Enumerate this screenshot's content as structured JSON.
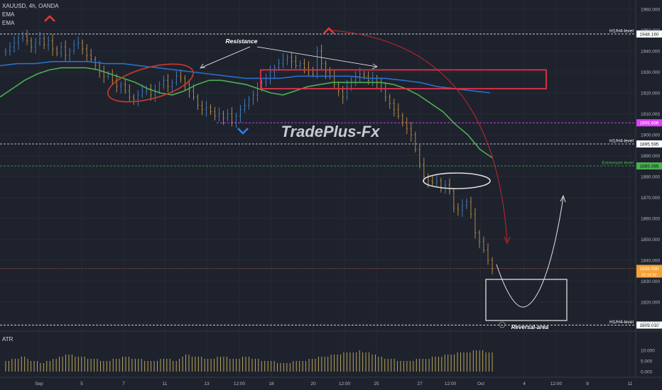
{
  "header": {
    "symbol_line": "XAUUSD, 4h, OANDA",
    "indicator_1": "EMA",
    "indicator_2": "EMA",
    "atr_label": "ATR"
  },
  "watermark": "TradePlus-Fx",
  "colors": {
    "background": "#1e222d",
    "up_candle": "#4a90d9",
    "down_candle": "#d9a24a",
    "ema_fast": "#4caf50",
    "ema_slow": "#2a6fc9",
    "resistance_box": "#e0324a",
    "price_label_bg": "#f7a234",
    "magenta_level": "#e040fb",
    "green_level": "#4caf50",
    "atr_bars": "#c9b25a"
  },
  "chart_data": [
    {
      "type": "candlestick",
      "title": "XAUUSD, 4h, OANDA",
      "ylim": [
        1800,
        1960
      ],
      "y_ticks": [
        1810,
        1820,
        1830,
        1840,
        1850,
        1860,
        1870,
        1880,
        1890,
        1900,
        1910,
        1920,
        1930,
        1940,
        1950,
        1960
      ],
      "y_tick_labels": [
        "1810.000",
        "1820.000",
        "1830.000",
        "1840.000",
        "1850.000",
        "1860.000",
        "1870.000",
        "1880.000",
        "1890.000",
        "1900.000",
        "1910.000",
        "1920.000",
        "1930.000",
        "1940.000",
        "1950.000",
        "1960.000"
      ],
      "x_tick_labels": [
        "Sep",
        "5",
        "7",
        "11",
        "13",
        "12:00",
        "18",
        "20",
        "12:00",
        "25",
        "27",
        "12:00",
        "Oct",
        "4",
        "12:00",
        "9",
        "11"
      ],
      "price_levels": [
        {
          "label": "H1/H4-level",
          "value": 1948.16,
          "tag": "1948.160",
          "style": "dashed-white"
        },
        {
          "label": "",
          "value": 1905.696,
          "tag": "1905.696",
          "style": "dashed-magenta"
        },
        {
          "label": "H1/H4-level",
          "value": 1895.595,
          "tag": "1895.595",
          "style": "dashed-white"
        },
        {
          "label": "Extremum  level",
          "value": 1885.085,
          "tag": "1885.085",
          "style": "dashed-green"
        },
        {
          "label": "H1/H4-level",
          "value": 1809.01,
          "tag": "1809.010",
          "style": "dashed-white"
        }
      ],
      "last_price": {
        "value": 1836.09,
        "tag": "1836.090",
        "countdown": "02:19:32"
      },
      "close_series": [
        1940,
        1942,
        1944,
        1946,
        1947,
        1945,
        1942,
        1944,
        1946,
        1943,
        1945,
        1941,
        1939,
        1942,
        1938,
        1940,
        1943,
        1944,
        1941,
        1938,
        1936,
        1933,
        1930,
        1928,
        1929,
        1926,
        1923,
        1924,
        1921,
        1918,
        1917,
        1919,
        1921,
        1922,
        1919,
        1921,
        1924,
        1926,
        1923,
        1925,
        1928,
        1927,
        1924,
        1921,
        1918,
        1914,
        1912,
        1913,
        1911,
        1909,
        1910,
        1908,
        1910,
        1906,
        1909,
        1912,
        1914,
        1917,
        1919,
        1922,
        1925,
        1927,
        1930,
        1932,
        1934,
        1936,
        1937,
        1935,
        1933,
        1934,
        1932,
        1931,
        1929,
        1940,
        1934,
        1930,
        1928,
        1924,
        1921,
        1918,
        1923,
        1926,
        1928,
        1929,
        1928,
        1926,
        1927,
        1925,
        1922,
        1918,
        1915,
        1912,
        1909,
        1906,
        1903,
        1900,
        1893,
        1886,
        1880,
        1878,
        1877,
        1878,
        1875,
        1876,
        1873,
        1865,
        1864,
        1866,
        1868,
        1862,
        1853,
        1849,
        1845,
        1840,
        1836
      ],
      "ema_fast_series": [
        1918,
        1922,
        1926,
        1929,
        1931,
        1932,
        1932,
        1932,
        1931,
        1929,
        1927,
        1925,
        1922,
        1920,
        1919,
        1921,
        1924,
        1926,
        1926,
        1925,
        1924,
        1922,
        1920,
        1919,
        1921,
        1923,
        1924,
        1925,
        1925,
        1925,
        1925,
        1925,
        1924,
        1922,
        1919,
        1915,
        1911,
        1905,
        1900,
        1893,
        1889
      ],
      "ema_slow_series": [
        1933,
        1934,
        1934,
        1935,
        1935,
        1935,
        1934,
        1934,
        1933,
        1932,
        1931,
        1930,
        1929,
        1928,
        1927,
        1927,
        1927,
        1928,
        1928,
        1928,
        1928,
        1927,
        1927,
        1926,
        1925,
        1923,
        1922,
        1921,
        1920
      ],
      "annotations": {
        "resistance_label": "Resistance",
        "reversal_label": "Reversal-area"
      }
    },
    {
      "type": "bar",
      "title": "ATR",
      "ylim": [
        0,
        15
      ],
      "y_ticks": [
        0,
        5,
        10
      ],
      "y_tick_labels": [
        "0.000",
        "5.000",
        "10.000"
      ],
      "values": [
        5,
        5,
        6,
        6,
        6,
        7,
        7,
        6,
        5,
        5,
        5,
        4,
        4,
        5,
        5,
        6,
        6,
        7,
        7,
        8,
        8,
        8,
        7,
        7,
        7,
        7,
        6,
        6,
        6,
        6,
        5,
        5,
        5,
        5,
        6,
        6,
        6,
        7,
        7,
        7,
        6,
        6,
        6,
        6,
        5,
        5,
        5,
        5,
        5,
        6,
        6,
        6,
        6,
        5,
        5,
        6,
        7,
        8,
        8,
        7,
        7,
        7,
        7,
        6,
        6,
        6,
        6,
        7,
        7,
        7,
        7,
        6,
        6,
        6,
        6,
        7,
        7,
        7,
        6,
        6,
        6,
        5,
        5,
        5,
        5,
        5,
        4,
        4,
        4,
        4,
        4,
        5,
        5,
        5,
        5,
        5,
        6,
        6,
        6,
        7,
        7,
        7,
        7,
        8,
        8,
        8,
        8,
        9,
        9,
        9,
        9,
        9,
        10,
        9,
        9,
        9,
        8,
        8,
        7,
        7,
        6,
        6,
        6,
        6,
        5,
        5,
        5,
        5,
        5,
        5,
        6,
        6,
        6,
        6,
        6,
        7,
        7,
        7,
        7,
        8,
        8,
        8,
        8,
        9,
        9,
        9,
        9,
        9,
        10,
        10,
        10,
        10,
        9,
        9,
        9
      ]
    }
  ]
}
